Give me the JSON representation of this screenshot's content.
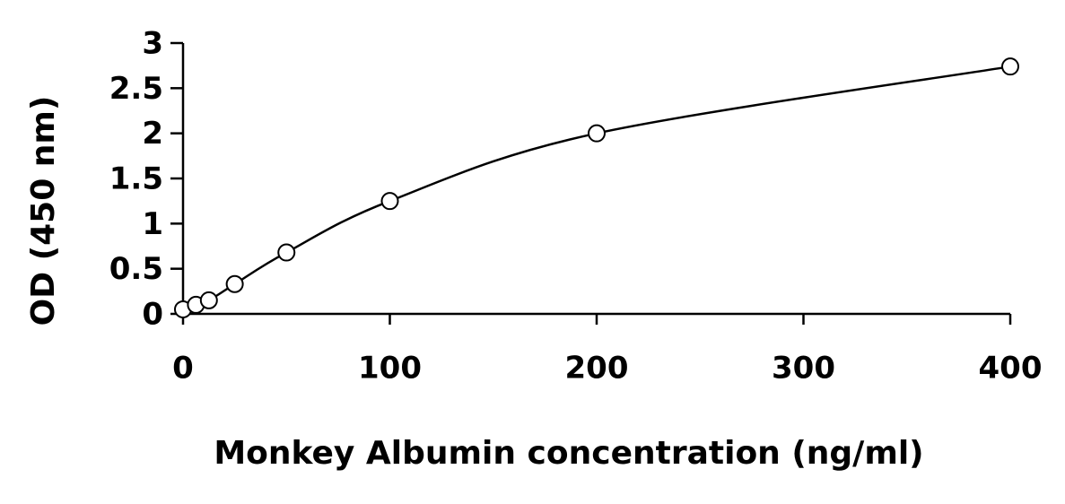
{
  "chart_data": {
    "type": "scatter",
    "x_label": "Monkey Albumin concentration (ng/ml)",
    "y_label": "OD (450 nm)",
    "x": [
      0,
      6.25,
      12.5,
      25,
      50,
      100,
      200,
      400
    ],
    "values": [
      0.05,
      0.1,
      0.15,
      0.33,
      0.68,
      1.25,
      2.0,
      2.74
    ],
    "color": "#000000",
    "fit_line": true,
    "xlim": [
      0,
      400
    ],
    "xticks": [
      0,
      100,
      200,
      300,
      400
    ],
    "ylim": [
      0,
      3
    ],
    "yticks": [
      0,
      0.5,
      1,
      1.5,
      2,
      2.5,
      3
    ]
  }
}
